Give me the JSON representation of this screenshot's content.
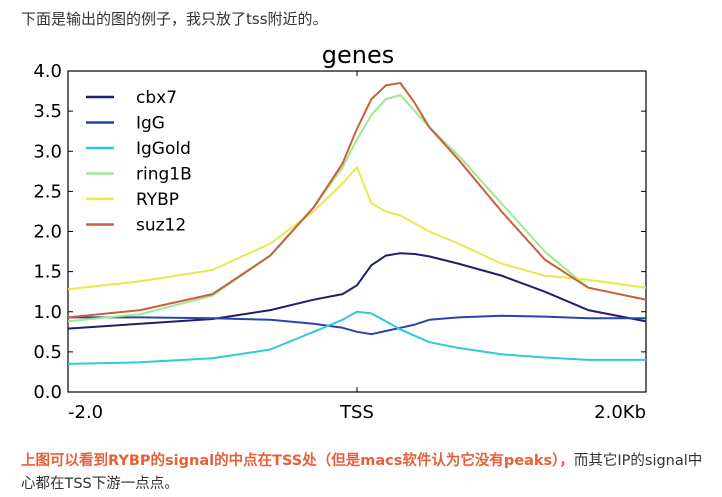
{
  "intro_text": "下面是输出的图的例子，我只放了tss附近的。",
  "caption": {
    "highlight": "上图可以看到RYBP的signal的中点在TSS处（但是macs软件认为它没有peaks），",
    "rest": "而其它IP的signal中心都在TSS下游一点点。"
  },
  "colors": {
    "highlight_text": "#e8603a",
    "body_text": "#333333"
  },
  "chart_data": {
    "type": "line",
    "title": "genes",
    "xlabel": "",
    "ylabel": "",
    "xlim": [
      -2.0,
      2.0
    ],
    "ylim": [
      0.0,
      4.0
    ],
    "xticks": [
      {
        "value": -2.0,
        "label": "-2.0"
      },
      {
        "value": 0.0,
        "label": "TSS"
      },
      {
        "value": 2.0,
        "label": "2.0Kb"
      }
    ],
    "yticks": [
      {
        "value": 0.0,
        "label": "0.0"
      },
      {
        "value": 0.5,
        "label": "0.5"
      },
      {
        "value": 1.0,
        "label": "1.0"
      },
      {
        "value": 1.5,
        "label": "1.5"
      },
      {
        "value": 2.0,
        "label": "2.0"
      },
      {
        "value": 2.5,
        "label": "2.5"
      },
      {
        "value": 3.0,
        "label": "3.0"
      },
      {
        "value": 3.5,
        "label": "3.5"
      },
      {
        "value": 4.0,
        "label": "4.0"
      }
    ],
    "grid": false,
    "legend_position": "top-left",
    "x": [
      -2.0,
      -1.5,
      -1.0,
      -0.6,
      -0.3,
      -0.1,
      0.0,
      0.1,
      0.2,
      0.3,
      0.4,
      0.5,
      0.7,
      1.0,
      1.3,
      1.6,
      2.0
    ],
    "series": [
      {
        "name": "cbx7",
        "color": "#1f1f6e",
        "values": [
          0.79,
          0.85,
          0.91,
          1.02,
          1.15,
          1.22,
          1.33,
          1.58,
          1.7,
          1.73,
          1.72,
          1.69,
          1.6,
          1.45,
          1.25,
          1.02,
          0.88
        ]
      },
      {
        "name": "IgG",
        "color": "#2845a8",
        "values": [
          0.93,
          0.93,
          0.92,
          0.9,
          0.85,
          0.8,
          0.75,
          0.72,
          0.76,
          0.8,
          0.84,
          0.9,
          0.93,
          0.95,
          0.94,
          0.92,
          0.92
        ]
      },
      {
        "name": "IgGold",
        "color": "#30c8e0",
        "values": [
          0.35,
          0.37,
          0.42,
          0.53,
          0.75,
          0.9,
          1.0,
          0.98,
          0.88,
          0.78,
          0.7,
          0.62,
          0.55,
          0.47,
          0.43,
          0.4,
          0.4
        ]
      },
      {
        "name": "ring1B",
        "color": "#a0e890",
        "values": [
          0.88,
          0.97,
          1.2,
          1.7,
          2.3,
          2.8,
          3.15,
          3.45,
          3.65,
          3.7,
          3.5,
          3.3,
          2.95,
          2.35,
          1.75,
          1.3,
          1.15
        ]
      },
      {
        "name": "RYBP",
        "color": "#e8e850",
        "values": [
          1.28,
          1.38,
          1.52,
          1.85,
          2.25,
          2.6,
          2.8,
          2.35,
          2.25,
          2.2,
          2.1,
          2.0,
          1.85,
          1.6,
          1.45,
          1.4,
          1.3
        ]
      },
      {
        "name": "suz12",
        "color": "#c8603a",
        "values": [
          0.93,
          1.02,
          1.22,
          1.7,
          2.3,
          2.85,
          3.28,
          3.65,
          3.82,
          3.85,
          3.6,
          3.3,
          2.9,
          2.25,
          1.65,
          1.3,
          1.15
        ]
      }
    ]
  }
}
